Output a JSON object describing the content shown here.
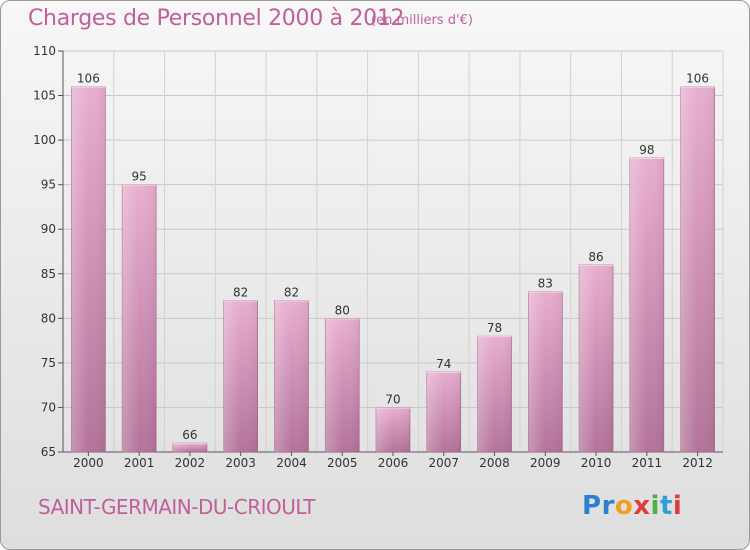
{
  "title": "Charges de Personnel 2000 à 2012",
  "unit": "(en milliers d'€)",
  "commune": "SAINT-GERMAIN-DU-CRIOULT",
  "logo": {
    "letters": [
      {
        "ch": "P",
        "color": "#2f7fd0"
      },
      {
        "ch": "r",
        "color": "#2f7fd0"
      },
      {
        "ch": "o",
        "color": "#f0a020"
      },
      {
        "ch": "x",
        "color": "#e03c3c"
      },
      {
        "ch": "i",
        "color": "#50b040"
      },
      {
        "ch": "t",
        "color": "#2f9fd8"
      },
      {
        "ch": "i",
        "color": "#e03c3c"
      }
    ]
  },
  "colors": {
    "bar": "#d58fb9",
    "bar_top": "#e8aed0",
    "accent": "#c0609a"
  },
  "chart_data": {
    "type": "bar",
    "title": "Charges de Personnel 2000 à 2012",
    "subtitle": "(en milliers d'€)",
    "categories": [
      "2000",
      "2001",
      "2002",
      "2003",
      "2004",
      "2005",
      "2006",
      "2007",
      "2008",
      "2009",
      "2010",
      "2011",
      "2012"
    ],
    "values": [
      106,
      95,
      66,
      82,
      82,
      80,
      70,
      74,
      78,
      83,
      86,
      98,
      106
    ],
    "ylim": [
      65,
      110
    ],
    "yticks": [
      65,
      70,
      75,
      80,
      85,
      90,
      95,
      100,
      105,
      110
    ],
    "grid": true,
    "xlabel": "",
    "ylabel": ""
  }
}
